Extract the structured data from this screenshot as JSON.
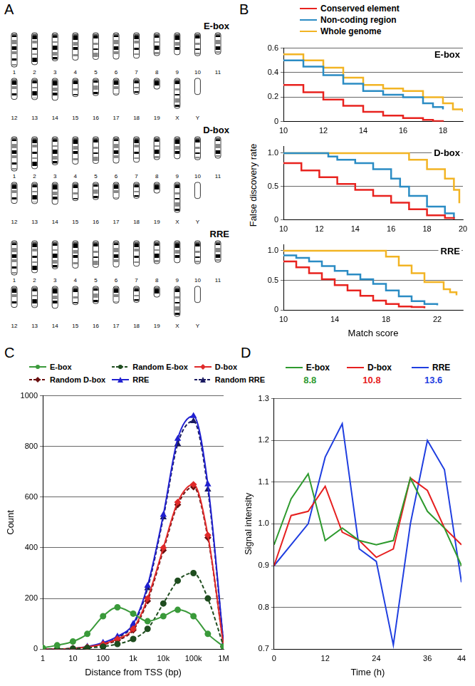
{
  "ideogram": {
    "panel": "A",
    "groups": [
      "E-box",
      "D-box",
      "RRE"
    ],
    "chromosomes": [
      {
        "name": "1",
        "length": 195
      },
      {
        "name": "2",
        "length": 182
      },
      {
        "name": "3",
        "length": 160
      },
      {
        "name": "4",
        "length": 156
      },
      {
        "name": "5",
        "length": 152
      },
      {
        "name": "6",
        "length": 150
      },
      {
        "name": "7",
        "length": 145
      },
      {
        "name": "8",
        "length": 130
      },
      {
        "name": "9",
        "length": 125
      },
      {
        "name": "10",
        "length": 131
      },
      {
        "name": "11",
        "length": 122
      },
      {
        "name": "12",
        "length": 120
      },
      {
        "name": "13",
        "length": 121
      },
      {
        "name": "14",
        "length": 125
      },
      {
        "name": "15",
        "length": 104
      },
      {
        "name": "16",
        "length": 98
      },
      {
        "name": "17",
        "length": 95
      },
      {
        "name": "18",
        "length": 91
      },
      {
        "name": "19",
        "length": 61
      },
      {
        "name": "X",
        "length": 171
      },
      {
        "name": "Y",
        "length": 92,
        "banded": false
      }
    ]
  },
  "chart_data": [
    {
      "panel": "B",
      "type": "line",
      "title": "E-box",
      "legend": "top",
      "grid": true,
      "xlim": [
        10,
        19
      ],
      "xticks": [
        10,
        12,
        14,
        16,
        18
      ],
      "ylim": [
        0,
        0.6
      ],
      "yticks": [
        0,
        0.2,
        0.4,
        0.6
      ],
      "series": [
        {
          "name": "Conserved element",
          "color": "#e8231f",
          "line_style": "step",
          "x": [
            10,
            11,
            12,
            13,
            14,
            15,
            16,
            17,
            17.5,
            18
          ],
          "values": [
            0.3,
            0.24,
            0.18,
            0.13,
            0.08,
            0.05,
            0.03,
            0.015,
            0.005,
            0
          ]
        },
        {
          "name": "Non-coding region",
          "color": "#2b8cc4",
          "line_style": "step",
          "x": [
            10,
            11,
            12,
            13,
            14,
            15,
            16,
            17,
            17.5,
            18
          ],
          "values": [
            0.5,
            0.45,
            0.38,
            0.31,
            0.25,
            0.22,
            0.2,
            0.15,
            0.12,
            0.1
          ]
        },
        {
          "name": "Whole genome",
          "color": "#f2b424",
          "line_style": "step",
          "x": [
            10,
            11,
            12,
            13,
            14,
            15,
            16,
            17,
            18,
            18.5,
            19
          ],
          "values": [
            0.55,
            0.5,
            0.44,
            0.36,
            0.3,
            0.27,
            0.25,
            0.2,
            0.15,
            0.1,
            0.08
          ]
        }
      ]
    },
    {
      "type": "line",
      "title": "D-box",
      "grid": true,
      "y_label": "False discovery rate",
      "xlim": [
        10,
        20
      ],
      "xticks": [
        10,
        12,
        14,
        16,
        18,
        20
      ],
      "ylim": [
        0,
        1.1
      ],
      "yticks": [
        0,
        0.5,
        {
          "value": 1,
          "label": "1.0"
        }
      ],
      "series": [
        {
          "name": "Conserved element",
          "color": "#e8231f",
          "line_style": "step",
          "x": [
            10,
            11,
            12,
            13,
            14,
            15,
            16,
            17,
            18,
            19,
            19.5
          ],
          "values": [
            0.85,
            0.74,
            0.64,
            0.54,
            0.45,
            0.36,
            0.26,
            0.16,
            0.07,
            0.03,
            0.01
          ]
        },
        {
          "name": "Non-coding region",
          "color": "#2b8cc4",
          "line_style": "step",
          "x": [
            10,
            12,
            12.5,
            13,
            14,
            15,
            16,
            16.5,
            17,
            18,
            19,
            19.5
          ],
          "values": [
            1,
            1,
            0.95,
            0.9,
            0.85,
            0.76,
            0.62,
            0.5,
            0.36,
            0.2,
            0.1,
            0.02
          ]
        },
        {
          "name": "Whole genome",
          "color": "#f2b424",
          "line_style": "step",
          "x": [
            10,
            16.5,
            17,
            18,
            19,
            19.5,
            19.8
          ],
          "values": [
            1,
            1,
            0.9,
            0.76,
            0.62,
            0.45,
            0.25
          ]
        }
      ]
    },
    {
      "type": "line",
      "title": "RRE",
      "grid": true,
      "x_label": "Match score",
      "xlim": [
        10,
        24
      ],
      "xticks": [
        10,
        14,
        18,
        22
      ],
      "ylim": [
        0,
        1.1
      ],
      "yticks": [
        0,
        0.5,
        {
          "value": 1,
          "label": "1.0"
        }
      ],
      "series": [
        {
          "name": "Conserved element",
          "color": "#e8231f",
          "line_style": "step",
          "x": [
            10,
            11,
            12,
            13,
            14,
            15,
            16,
            17,
            18,
            19,
            20,
            21
          ],
          "values": [
            0.82,
            0.72,
            0.62,
            0.52,
            0.42,
            0.33,
            0.24,
            0.16,
            0.1,
            0.06,
            0.05,
            0.03
          ]
        },
        {
          "name": "Non-coding region",
          "color": "#2b8cc4",
          "line_style": "step",
          "x": [
            10,
            11,
            12,
            13,
            14,
            15,
            16,
            17,
            18,
            19,
            20,
            21,
            22
          ],
          "values": [
            0.92,
            0.88,
            0.82,
            0.74,
            0.66,
            0.6,
            0.52,
            0.44,
            0.33,
            0.23,
            0.15,
            0.1,
            0.08
          ]
        },
        {
          "name": "Whole genome",
          "color": "#f2b424",
          "line_style": "step",
          "x": [
            10,
            17.5,
            18,
            19,
            20,
            21,
            22,
            22.5,
            23,
            23.5
          ],
          "values": [
            1,
            1,
            0.9,
            0.75,
            0.62,
            0.47,
            0.47,
            0.35,
            0.3,
            0.25
          ]
        }
      ]
    },
    {
      "panel": "C",
      "type": "line",
      "legend": "top",
      "grid": true,
      "log": "x",
      "x_label": "Distance from TSS (bp)",
      "y_label": "Count",
      "x": [
        1,
        3,
        10,
        30,
        100,
        300,
        1000,
        3000,
        10000,
        30000,
        100000,
        300000,
        1000000
      ],
      "xlim": [
        1,
        1000000
      ],
      "xticks": [
        1,
        10,
        100,
        {
          "value": 1000,
          "label": "1k"
        },
        {
          "value": 10000,
          "label": "10k"
        },
        {
          "value": 100000,
          "label": "100k"
        },
        {
          "value": 1000000,
          "label": "1M"
        }
      ],
      "ylim": [
        0,
        1000
      ],
      "yticks": [
        0,
        200,
        400,
        600,
        800,
        1000
      ],
      "series": [
        {
          "name": "E-box",
          "color": "#3a9a3a",
          "marker": "circle",
          "line_style": "solid",
          "values": [
            5,
            15,
            30,
            60,
            130,
            165,
            140,
            110,
            130,
            155,
            130,
            60,
            10
          ]
        },
        {
          "name": "Random E-box",
          "color": "#1f4d1f",
          "marker": "circle",
          "line_style": "dashed",
          "values": [
            0,
            0,
            2,
            5,
            10,
            20,
            40,
            80,
            180,
            270,
            300,
            200,
            10
          ]
        },
        {
          "name": "D-box",
          "color": "#e02a2a",
          "marker": "diamond",
          "line_style": "solid",
          "values": [
            0,
            0,
            3,
            8,
            20,
            40,
            80,
            200,
            400,
            580,
            650,
            450,
            10
          ]
        },
        {
          "name": "Random D-box",
          "color": "#6b1010",
          "marker": "diamond",
          "line_style": "dashed",
          "values": [
            0,
            0,
            2,
            6,
            18,
            35,
            75,
            190,
            390,
            570,
            640,
            440,
            10
          ]
        },
        {
          "name": "RRE",
          "color": "#2020d0",
          "marker": "triangle",
          "line_style": "solid",
          "values": [
            0,
            0,
            3,
            10,
            25,
            50,
            100,
            250,
            530,
            830,
            920,
            650,
            20
          ]
        },
        {
          "name": "Random RRE",
          "color": "#1a1a60",
          "marker": "triangle",
          "line_style": "dashed",
          "values": [
            0,
            0,
            2,
            8,
            20,
            45,
            95,
            240,
            520,
            810,
            900,
            630,
            18
          ]
        }
      ]
    },
    {
      "panel": "D",
      "type": "line",
      "legend": "top",
      "grid": true,
      "x_label": "Time (h)",
      "y_label": "Signal intensity",
      "x": [
        0,
        4,
        8,
        12,
        16,
        20,
        24,
        28,
        32,
        36,
        40,
        44
      ],
      "xlim": [
        0,
        44
      ],
      "xticks": [
        0,
        12,
        24,
        36,
        44
      ],
      "ylim": [
        0.7,
        1.3
      ],
      "yticks": [
        0.7,
        0.8,
        0.9,
        {
          "value": 1,
          "label": "1.0"
        },
        1.1,
        1.2,
        1.3
      ],
      "series": [
        {
          "name": "E-box",
          "color": "#2e9a2e",
          "phase": 8.8,
          "line_style": "solid",
          "values": [
            0.95,
            1.06,
            1.12,
            0.96,
            0.99,
            0.96,
            0.95,
            0.96,
            1.11,
            1.03,
            0.99,
            0.9
          ]
        },
        {
          "name": "D-box",
          "color": "#e62020",
          "phase": 10.8,
          "line_style": "solid",
          "values": [
            0.9,
            1.02,
            1.03,
            1.09,
            0.98,
            0.96,
            0.92,
            0.94,
            1.11,
            1.08,
            0.99,
            0.95
          ]
        },
        {
          "name": "RRE",
          "color": "#1f3ee0",
          "phase": 13.6,
          "line_style": "solid",
          "values": [
            0.9,
            0.95,
            1.0,
            1.16,
            1.24,
            0.94,
            0.91,
            0.71,
            1.0,
            1.2,
            1.13,
            0.86
          ]
        }
      ]
    }
  ]
}
